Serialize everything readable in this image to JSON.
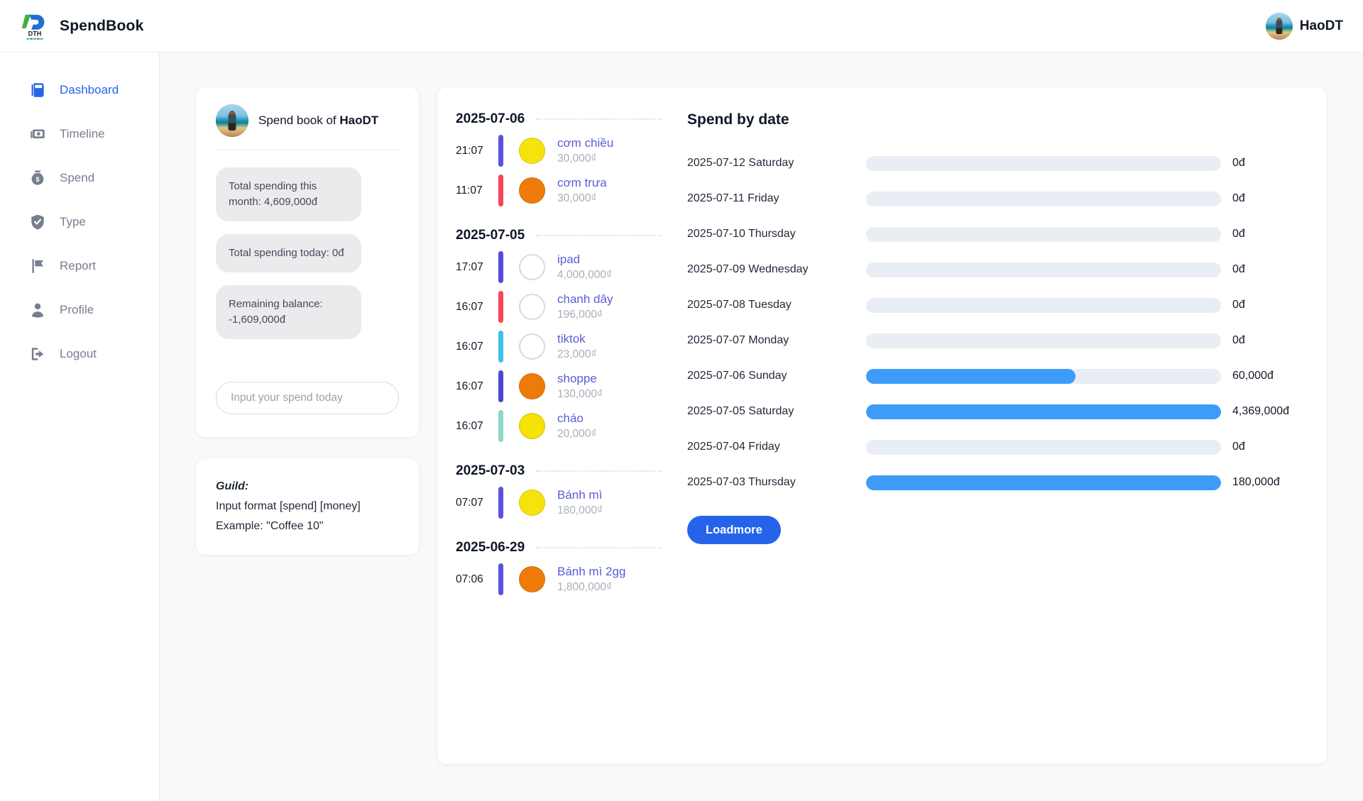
{
  "header": {
    "brand": "SpendBook",
    "logo_text": "DTH",
    "user": "HaoDT"
  },
  "sidebar": {
    "items": [
      {
        "label": "Dashboard",
        "icon": "dashboard",
        "active": true
      },
      {
        "label": "Timeline",
        "icon": "timeline",
        "active": false
      },
      {
        "label": "Spend",
        "icon": "spend",
        "active": false
      },
      {
        "label": "Type",
        "icon": "type",
        "active": false
      },
      {
        "label": "Report",
        "icon": "report",
        "active": false
      },
      {
        "label": "Profile",
        "icon": "profile",
        "active": false
      },
      {
        "label": "Logout",
        "icon": "logout",
        "active": false
      }
    ]
  },
  "profile_card": {
    "title_prefix": "Spend book of",
    "username": "HaoDT",
    "stats": [
      "Total spending this month: 4,609,000đ",
      "Total spending today: 0đ",
      "Remaining balance: -1,609,000đ"
    ],
    "input_placeholder": "Input your spend today"
  },
  "guild_card": {
    "title": "Guild:",
    "lines": [
      "Input format [spend] [money]",
      "Example: \"Coffee 10\""
    ]
  },
  "timeline": {
    "groups": [
      {
        "date": "2025-07-06",
        "items": [
          {
            "time": "21:07",
            "bar_color": "#5a52e0",
            "dot_color": "#f6e30b",
            "dot_filled": true,
            "name": "cơm chiều",
            "amount": "30,000₫"
          },
          {
            "time": "11:07",
            "bar_color": "#fb4459",
            "dot_color": "#ef7b09",
            "dot_filled": true,
            "name": "cơm trưa",
            "amount": "30,000₫"
          }
        ]
      },
      {
        "date": "2025-07-05",
        "items": [
          {
            "time": "17:07",
            "bar_color": "#554cdb",
            "dot_color": "",
            "dot_filled": false,
            "name": "ipad",
            "amount": "4,000,000₫"
          },
          {
            "time": "16:07",
            "bar_color": "#fb4459",
            "dot_color": "",
            "dot_filled": false,
            "name": "chanh dây",
            "amount": "196,000₫"
          },
          {
            "time": "16:07",
            "bar_color": "#3fc1e9",
            "dot_color": "",
            "dot_filled": false,
            "name": "tiktok",
            "amount": "23,000₫"
          },
          {
            "time": "16:07",
            "bar_color": "#4f46d6",
            "dot_color": "#ee7a08",
            "dot_filled": true,
            "name": "shoppe",
            "amount": "130,000₫"
          },
          {
            "time": "16:07",
            "bar_color": "#8fd9cb",
            "dot_color": "#f5e206",
            "dot_filled": true,
            "name": "cháo",
            "amount": "20,000₫"
          }
        ]
      },
      {
        "date": "2025-07-03",
        "items": [
          {
            "time": "07:07",
            "bar_color": "#5a52e0",
            "dot_color": "#f6e30b",
            "dot_filled": true,
            "name": "Bánh mì",
            "amount": "180,000₫"
          }
        ]
      },
      {
        "date": "2025-06-29",
        "items": [
          {
            "time": "07:06",
            "bar_color": "#5a52e0",
            "dot_color": "#ef7b09",
            "dot_filled": true,
            "name": "Bánh mì 2gg",
            "amount": "1,800,000₫"
          }
        ]
      }
    ]
  },
  "chart_data": {
    "type": "bar",
    "orientation": "horizontal",
    "title": "Spend by date",
    "categories": [
      "2025-07-12 Saturday",
      "2025-07-11 Friday",
      "2025-07-10 Thursday",
      "2025-07-09 Wednesday",
      "2025-07-08 Tuesday",
      "2025-07-07 Monday",
      "2025-07-06 Sunday",
      "2025-07-05 Saturday",
      "2025-07-04 Friday",
      "2025-07-03 Thursday"
    ],
    "values": [
      0,
      0,
      0,
      0,
      0,
      0,
      60000,
      4369000,
      0,
      180000
    ],
    "value_labels": [
      "0đ",
      "0đ",
      "0đ",
      "0đ",
      "0đ",
      "0đ",
      "60,000đ",
      "4,369,000đ",
      "0đ",
      "180,000đ"
    ],
    "fill_pct": [
      0,
      0,
      0,
      0,
      0,
      0,
      59,
      100,
      0,
      100
    ],
    "bar_color": "#3d9cfa",
    "track_color": "#e9edf4"
  },
  "loadmore_label": "Loadmore"
}
